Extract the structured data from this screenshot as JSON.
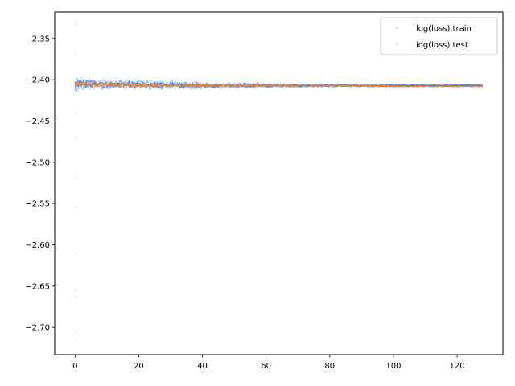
{
  "chart_data": {
    "type": "scatter",
    "title": "",
    "xlabel": "",
    "ylabel": "",
    "xlim": [
      -6.4,
      134.4
    ],
    "ylim": [
      -2.733,
      -2.318
    ],
    "x_ticks": [
      0,
      20,
      40,
      60,
      80,
      100,
      120
    ],
    "y_ticks": [
      -2.35,
      -2.4,
      -2.45,
      -2.5,
      -2.55,
      -2.6,
      -2.65,
      -2.7
    ],
    "x_tick_labels": [
      "0",
      "20",
      "40",
      "60",
      "80",
      "100",
      "120"
    ],
    "y_tick_labels": [
      "−2.35",
      "−2.40",
      "−2.45",
      "−2.50",
      "−2.55",
      "−2.60",
      "−2.65",
      "−2.70"
    ],
    "grid": false,
    "legend_position": "top-right",
    "series": [
      {
        "name": "log(loss) train",
        "color": "#1f77ff",
        "band": {
          "x": [
            0,
            2,
            5,
            10,
            20,
            40,
            60,
            80,
            100,
            128
          ],
          "center": [
            -2.406,
            -2.405,
            -2.405,
            -2.406,
            -2.406,
            -2.407,
            -2.407,
            -2.407,
            -2.407,
            -2.407
          ],
          "half_width": [
            0.012,
            0.011,
            0.01,
            0.009,
            0.008,
            0.006,
            0.004,
            0.003,
            0.002,
            0.0015
          ]
        },
        "outliers": [
          {
            "x": 0.3,
            "y": -2.333
          },
          {
            "x": 0.2,
            "y": -2.37
          },
          {
            "x": 0.3,
            "y": -2.44
          },
          {
            "x": 0.2,
            "y": -2.47
          },
          {
            "x": 0.3,
            "y": -2.52
          },
          {
            "x": 0.2,
            "y": -2.555
          },
          {
            "x": 0.3,
            "y": -2.61
          },
          {
            "x": 0.2,
            "y": -2.655
          },
          {
            "x": 0.3,
            "y": -2.663
          },
          {
            "x": 0.2,
            "y": -2.705
          },
          {
            "x": 0.3,
            "y": -2.715
          }
        ]
      },
      {
        "name": "log(loss) test",
        "color": "#ff7f0e",
        "band": {
          "x": [
            0,
            2,
            5,
            10,
            20,
            40,
            60,
            80,
            100,
            128
          ],
          "center": [
            -2.405,
            -2.405,
            -2.406,
            -2.406,
            -2.407,
            -2.407,
            -2.407,
            -2.407,
            -2.408,
            -2.408
          ],
          "half_width": [
            0.006,
            0.005,
            0.005,
            0.005,
            0.004,
            0.003,
            0.002,
            0.0015,
            0.0012,
            0.001
          ]
        },
        "outliers": []
      }
    ]
  }
}
